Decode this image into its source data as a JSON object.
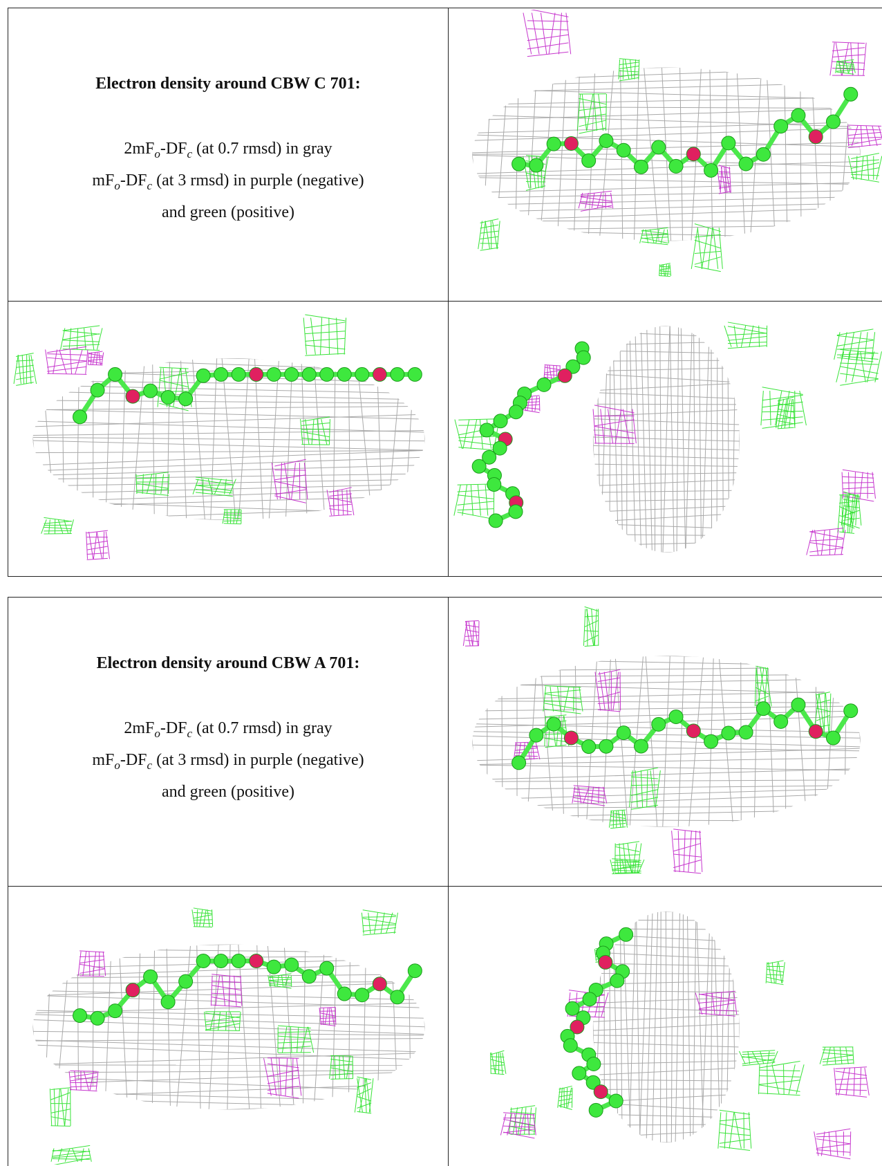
{
  "tables": [
    {
      "title": "Electron density around CBW C 701:",
      "lines": [
        [
          "2mF",
          "o",
          "-DF",
          "c",
          " (at 0.7 rmsd) in gray"
        ],
        [
          "mF",
          "o",
          "-DF",
          "c",
          " (at 3 rmsd) in purple (negative)"
        ],
        [
          "and green (positive)"
        ]
      ]
    },
    {
      "title": "Electron density around CBW A 701:",
      "lines": [
        [
          "2mF",
          "o",
          "-DF",
          "c",
          " (at 0.7 rmsd) in gray"
        ],
        [
          "mF",
          "o",
          "-DF",
          "c",
          " (at 3 rmsd) in purple (negative)"
        ],
        [
          "and green (positive)"
        ]
      ]
    }
  ]
}
